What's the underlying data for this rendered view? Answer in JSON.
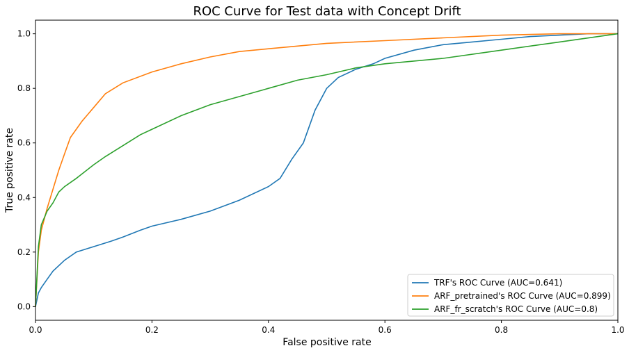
{
  "chart_data": {
    "type": "line",
    "title": "ROC Curve for Test data with Concept Drift",
    "xlabel": "False positive rate",
    "ylabel": "True positive rate",
    "xlim": [
      0.0,
      1.0
    ],
    "ylim": [
      -0.05,
      1.05
    ],
    "xticks": [
      "0.0",
      "0.2",
      "0.4",
      "0.6",
      "0.8",
      "1.0"
    ],
    "yticks": [
      "0.0",
      "0.2",
      "0.4",
      "0.6",
      "0.8",
      "1.0"
    ],
    "grid": false,
    "legend_position": "lower-right",
    "series": [
      {
        "name": "TRF's ROC Curve (AUC=0.641)",
        "color": "#1f77b4",
        "x": [
          0,
          0.005,
          0.01,
          0.02,
          0.03,
          0.05,
          0.07,
          0.1,
          0.13,
          0.15,
          0.18,
          0.2,
          0.25,
          0.3,
          0.35,
          0.4,
          0.42,
          0.44,
          0.46,
          0.48,
          0.5,
          0.52,
          0.55,
          0.58,
          0.6,
          0.65,
          0.7,
          0.75,
          0.8,
          0.85,
          0.9,
          0.95,
          1.0
        ],
        "y": [
          0,
          0.05,
          0.07,
          0.1,
          0.13,
          0.17,
          0.2,
          0.22,
          0.24,
          0.255,
          0.28,
          0.295,
          0.32,
          0.35,
          0.39,
          0.44,
          0.47,
          0.54,
          0.6,
          0.72,
          0.8,
          0.84,
          0.87,
          0.89,
          0.91,
          0.94,
          0.96,
          0.97,
          0.98,
          0.99,
          0.995,
          1.0,
          1.0
        ]
      },
      {
        "name": "ARF_pretrained's ROC Curve (AUC=0.899)",
        "color": "#ff7f0e",
        "x": [
          0,
          0.005,
          0.01,
          0.02,
          0.03,
          0.04,
          0.05,
          0.06,
          0.07,
          0.08,
          0.1,
          0.12,
          0.15,
          0.2,
          0.25,
          0.3,
          0.35,
          0.4,
          0.5,
          0.6,
          0.7,
          0.8,
          0.9,
          1.0
        ],
        "y": [
          0,
          0.2,
          0.28,
          0.36,
          0.43,
          0.5,
          0.56,
          0.62,
          0.65,
          0.68,
          0.73,
          0.78,
          0.82,
          0.86,
          0.89,
          0.915,
          0.935,
          0.945,
          0.965,
          0.975,
          0.985,
          0.995,
          1.0,
          1.0
        ]
      },
      {
        "name": "ARF_fr_scratch's ROC Curve (AUC=0.8)",
        "color": "#2ca02c",
        "x": [
          0,
          0.005,
          0.01,
          0.02,
          0.03,
          0.04,
          0.05,
          0.07,
          0.1,
          0.12,
          0.15,
          0.18,
          0.2,
          0.25,
          0.3,
          0.35,
          0.4,
          0.45,
          0.5,
          0.55,
          0.6,
          0.7,
          0.8,
          0.9,
          1.0
        ],
        "y": [
          0,
          0.22,
          0.3,
          0.35,
          0.38,
          0.42,
          0.44,
          0.47,
          0.52,
          0.55,
          0.59,
          0.63,
          0.65,
          0.7,
          0.74,
          0.77,
          0.8,
          0.83,
          0.85,
          0.875,
          0.89,
          0.91,
          0.94,
          0.97,
          1.0
        ]
      }
    ]
  }
}
